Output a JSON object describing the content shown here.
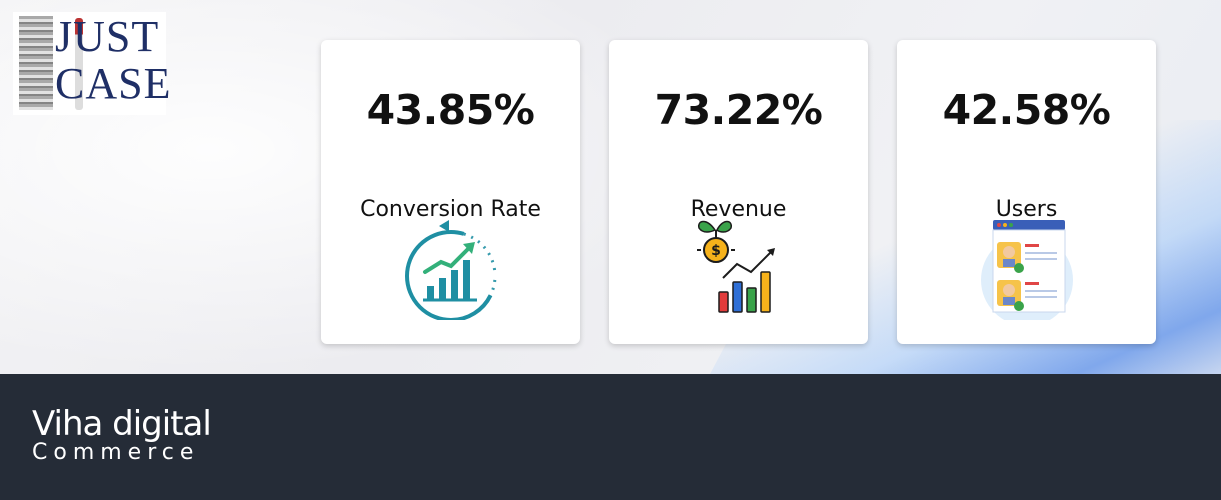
{
  "logo": {
    "line1": "JUST",
    "line2": "CASE"
  },
  "cards": [
    {
      "value": "43.85%",
      "label": "Conversion Rate",
      "icon": "growth-chart-icon"
    },
    {
      "value": "73.22%",
      "label": "Revenue",
      "icon": "revenue-plant-chart-icon"
    },
    {
      "value": "42.58%",
      "label": "Users",
      "icon": "user-profiles-icon"
    }
  ],
  "footer": {
    "brand_line1": "Viha digital",
    "brand_line2": "Commerce"
  },
  "colors": {
    "footer_bg": "#252c37",
    "accent_teal": "#1f8fa3",
    "text": "#111111"
  }
}
